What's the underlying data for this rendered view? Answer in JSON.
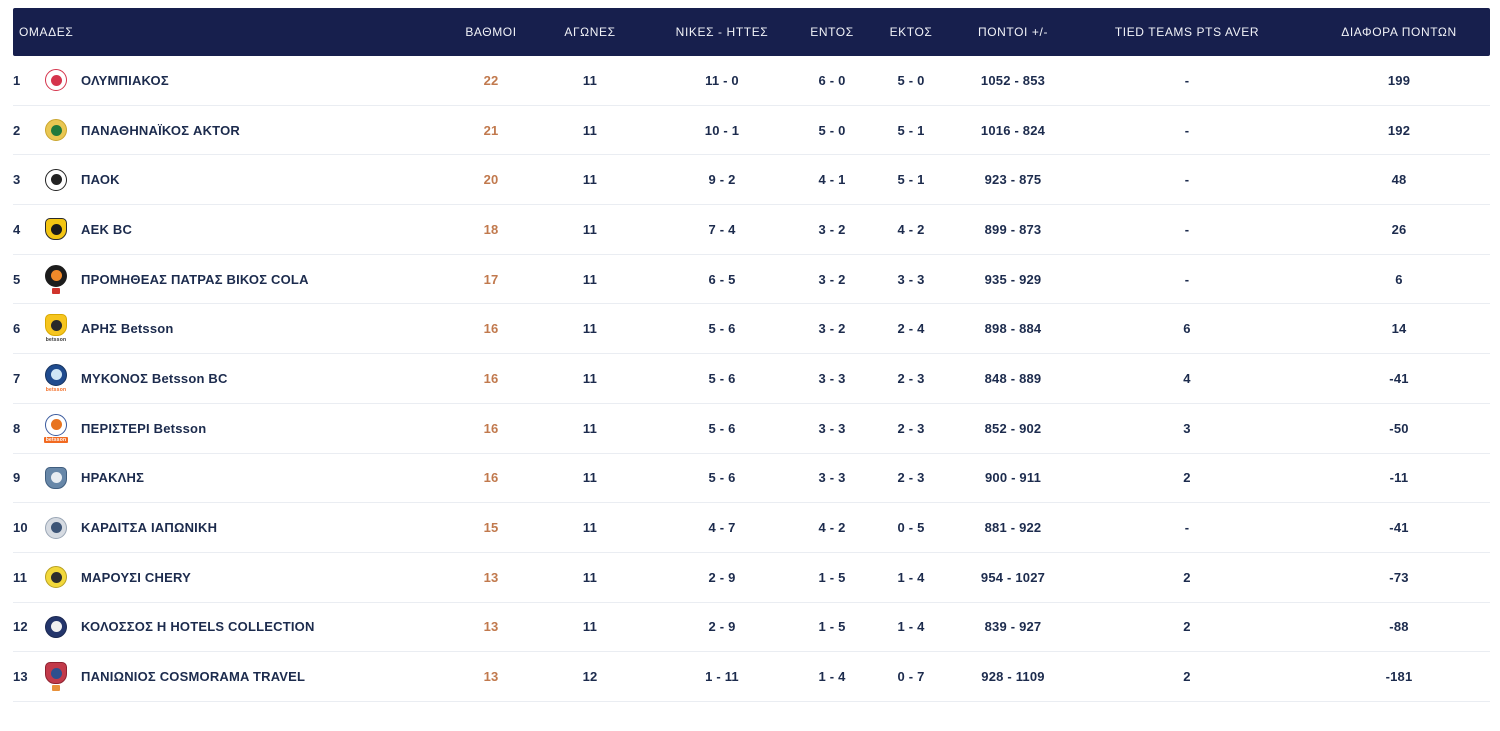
{
  "colors": {
    "header_bg": "#171f4d",
    "text": "#1c2b4d",
    "points_accent": "#c1794d",
    "row_border": "#eaedf2"
  },
  "table": {
    "columns": [
      {
        "key": "team",
        "label": "ΟΜΑΔΕΣ"
      },
      {
        "key": "points",
        "label": "ΒΑΘΜΟΙ"
      },
      {
        "key": "games",
        "label": "ΑΓΩΝΕΣ"
      },
      {
        "key": "wins_losses",
        "label": "ΝΙΚΕΣ - ΗΤΤΕΣ"
      },
      {
        "key": "home",
        "label": "ΕΝΤΟΣ"
      },
      {
        "key": "away",
        "label": "ΕΚΤΟΣ"
      },
      {
        "key": "points_for_against",
        "label": "ΠΟΝΤΟΙ +/-"
      },
      {
        "key": "tied_teams",
        "label": "TIED TEAMS PTS AVER"
      },
      {
        "key": "point_diff",
        "label": "ΔΙΑΦΟΡΑ ΠΟΝΤΩΝ"
      }
    ],
    "rows": [
      {
        "rank": "1",
        "team": "ΟΛΥΜΠΙΑΚΟΣ",
        "points": "22",
        "games": "11",
        "wins_losses": "11 - 0",
        "home": "6 - 0",
        "away": "5 - 0",
        "points_for_against": "1052 - 853",
        "tied_teams": "-",
        "point_diff": "199",
        "logo": {
          "name": "olympiacos-logo",
          "shape": "circle",
          "bg": "#ffffff",
          "border": "#d5344c",
          "glyph": "#d5344c"
        }
      },
      {
        "rank": "2",
        "team": "ΠΑΝΑΘΗΝΑΪΚΟΣ AKTOR",
        "points": "21",
        "games": "11",
        "wins_losses": "10 - 1",
        "home": "5 - 0",
        "away": "5 - 1",
        "points_for_against": "1016 - 824",
        "tied_teams": "-",
        "point_diff": "192",
        "logo": {
          "name": "panathinaikos-logo",
          "shape": "circle",
          "bg": "#e9c752",
          "border": "#caa52e",
          "glyph": "#207a3c"
        }
      },
      {
        "rank": "3",
        "team": "ΠΑΟΚ",
        "points": "20",
        "games": "11",
        "wins_losses": "9 - 2",
        "home": "4 - 1",
        "away": "5 - 1",
        "points_for_against": "923 - 875",
        "tied_teams": "-",
        "point_diff": "48",
        "logo": {
          "name": "paok-logo",
          "shape": "circle",
          "bg": "#ffffff",
          "border": "#222222",
          "glyph": "#222222"
        }
      },
      {
        "rank": "4",
        "team": "ΑΕΚ BC",
        "points": "18",
        "games": "11",
        "wins_losses": "7 - 4",
        "home": "3 - 2",
        "away": "4 - 2",
        "points_for_against": "899 - 873",
        "tied_teams": "-",
        "point_diff": "26",
        "logo": {
          "name": "aek-logo",
          "shape": "shield",
          "bg": "#f3c512",
          "border": "#2a2a2a",
          "glyph": "#1a1a1a"
        }
      },
      {
        "rank": "5",
        "team": "ΠΡΟΜΗΘΕΑΣ ΠΑΤΡΑΣ ΒΙΚΟΣ COLA",
        "points": "17",
        "games": "11",
        "wins_losses": "6 - 5",
        "home": "3 - 2",
        "away": "3 - 3",
        "points_for_against": "935 - 929",
        "tied_teams": "-",
        "point_diff": "6",
        "logo": {
          "name": "promitheas-logo",
          "shape": "circle",
          "bg": "#1c1c1c",
          "border": "#1c1c1c",
          "glyph": "#f08a2a",
          "sub_text": "",
          "sub_bg": "#d0342c",
          "sub_color": "#ffffff"
        }
      },
      {
        "rank": "6",
        "team": "ΑΡΗΣ Betsson",
        "points": "16",
        "games": "11",
        "wins_losses": "5 - 6",
        "home": "3 - 2",
        "away": "2 - 4",
        "points_for_against": "898 - 884",
        "tied_teams": "6",
        "point_diff": "14",
        "logo": {
          "name": "aris-logo",
          "shape": "shield",
          "bg": "#f6c51e",
          "border": "#d8a800",
          "glyph": "#2a2a2a",
          "sub_text": "betsson",
          "sub_color": "#333333"
        }
      },
      {
        "rank": "7",
        "team": "ΜΥΚΟΝΟΣ Betsson BC",
        "points": "16",
        "games": "11",
        "wins_losses": "5 - 6",
        "home": "3 - 3",
        "away": "2 - 3",
        "points_for_against": "848 - 889",
        "tied_teams": "4",
        "point_diff": "-41",
        "logo": {
          "name": "mykonos-logo",
          "shape": "circle",
          "bg": "#1f4b8e",
          "border": "#16335f",
          "glyph": "#cfe6f5",
          "sub_text": "betsson",
          "sub_color": "#f26a21"
        }
      },
      {
        "rank": "8",
        "team": "ΠΕΡΙΣΤΕΡΙ Betsson",
        "points": "16",
        "games": "11",
        "wins_losses": "5 - 6",
        "home": "3 - 3",
        "away": "2 - 3",
        "points_for_against": "852 - 902",
        "tied_teams": "3",
        "point_diff": "-50",
        "logo": {
          "name": "peristeri-logo",
          "shape": "circle",
          "bg": "#ffffff",
          "border": "#3a5a9e",
          "glyph": "#e8731e",
          "sub_text": "betsson",
          "sub_bg": "#f26a21",
          "sub_color": "#ffffff"
        }
      },
      {
        "rank": "9",
        "team": "ΗΡΑΚΛΗΣ",
        "points": "16",
        "games": "11",
        "wins_losses": "5 - 6",
        "home": "3 - 3",
        "away": "2 - 3",
        "points_for_against": "900 - 911",
        "tied_teams": "2",
        "point_diff": "-11",
        "logo": {
          "name": "iraklis-logo",
          "shape": "shield",
          "bg": "#6787a8",
          "border": "#3f5d7e",
          "glyph": "#e8edf2"
        }
      },
      {
        "rank": "10",
        "team": "ΚΑΡΔΙΤΣΑ ΙΑΠΩΝΙΚΗ",
        "points": "15",
        "games": "11",
        "wins_losses": "4 - 7",
        "home": "4 - 2",
        "away": "0 - 5",
        "points_for_against": "881 - 922",
        "tied_teams": "-",
        "point_diff": "-41",
        "logo": {
          "name": "karditsa-logo",
          "shape": "circle",
          "bg": "#d6dbe2",
          "border": "#9aa6b5",
          "glyph": "#3d5577"
        }
      },
      {
        "rank": "11",
        "team": "ΜΑΡΟΥΣΙ CHERY",
        "points": "13",
        "games": "11",
        "wins_losses": "2 - 9",
        "home": "1 - 5",
        "away": "1 - 4",
        "points_for_against": "954 - 1027",
        "tied_teams": "2",
        "point_diff": "-73",
        "logo": {
          "name": "maroussi-logo",
          "shape": "circle",
          "bg": "#f2d83b",
          "border": "#b8a020",
          "glyph": "#2e2e2e"
        }
      },
      {
        "rank": "12",
        "team": "ΚΟΛΟΣΣΟΣ Η HOTELS COLLECTION",
        "points": "13",
        "games": "11",
        "wins_losses": "2 - 9",
        "home": "1 - 5",
        "away": "1 - 4",
        "points_for_against": "839 - 927",
        "tied_teams": "2",
        "point_diff": "-88",
        "logo": {
          "name": "kolossos-logo",
          "shape": "circle",
          "bg": "#23356b",
          "border": "#1a2750",
          "glyph": "#f0f0f0"
        }
      },
      {
        "rank": "13",
        "team": "ΠΑΝΙΩΝΙΟΣ COSMORAMA TRAVEL",
        "points": "13",
        "games": "12",
        "wins_losses": "1 - 11",
        "home": "1 - 4",
        "away": "0 - 7",
        "points_for_against": "928 - 1109",
        "tied_teams": "2",
        "point_diff": "-181",
        "logo": {
          "name": "panionios-logo",
          "shape": "shield",
          "bg": "#c23a4a",
          "border": "#8e2230",
          "glyph": "#2e4f8e",
          "sub_text": "",
          "sub_bg": "#e8913a",
          "sub_color": "#ffffff"
        }
      }
    ]
  }
}
